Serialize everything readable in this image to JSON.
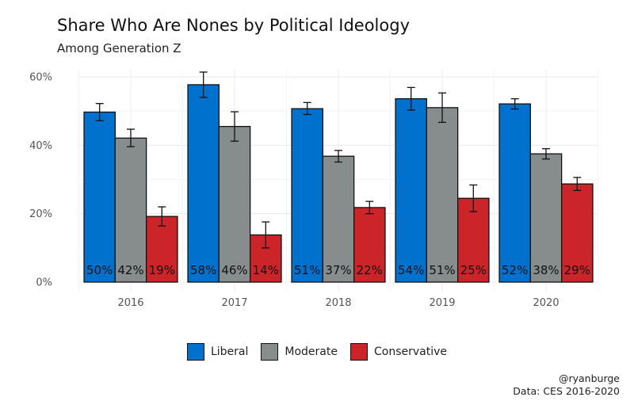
{
  "chart_data": {
    "type": "bar",
    "title": "Share Who Are Nones by Political Ideology",
    "subtitle": "Among Generation Z",
    "xlabel": "",
    "ylabel": "",
    "categories": [
      "2016",
      "2017",
      "2018",
      "2019",
      "2020"
    ],
    "ylim": [
      0,
      0.6
    ],
    "yticks": [
      "0%",
      "20%",
      "40%",
      "60%"
    ],
    "ytick_values": [
      0,
      0.2,
      0.4,
      0.6
    ],
    "grid": true,
    "legend_position": "bottom",
    "series": [
      {
        "name": "Liberal",
        "color": "#0072CE",
        "values": [
          0.497,
          0.577,
          0.507,
          0.536,
          0.521
        ],
        "labels": [
          "50%",
          "58%",
          "51%",
          "54%",
          "52%"
        ],
        "err_low": [
          0.472,
          0.54,
          0.49,
          0.503,
          0.506
        ],
        "err_high": [
          0.522,
          0.614,
          0.525,
          0.569,
          0.536
        ]
      },
      {
        "name": "Moderate",
        "color": "#878C8D",
        "values": [
          0.421,
          0.455,
          0.368,
          0.51,
          0.375
        ],
        "labels": [
          "42%",
          "46%",
          "37%",
          "51%",
          "38%"
        ],
        "err_low": [
          0.396,
          0.412,
          0.351,
          0.467,
          0.36
        ],
        "err_high": [
          0.447,
          0.498,
          0.385,
          0.553,
          0.39
        ]
      },
      {
        "name": "Conservative",
        "color": "#CC2529",
        "values": [
          0.192,
          0.138,
          0.218,
          0.245,
          0.287
        ],
        "labels": [
          "19%",
          "14%",
          "22%",
          "25%",
          "29%"
        ],
        "err_low": [
          0.164,
          0.1,
          0.2,
          0.206,
          0.268
        ],
        "err_high": [
          0.22,
          0.176,
          0.236,
          0.284,
          0.306
        ]
      }
    ]
  },
  "caption": {
    "line1": "@ryanburge",
    "line2": "Data: CES 2016-2020"
  }
}
